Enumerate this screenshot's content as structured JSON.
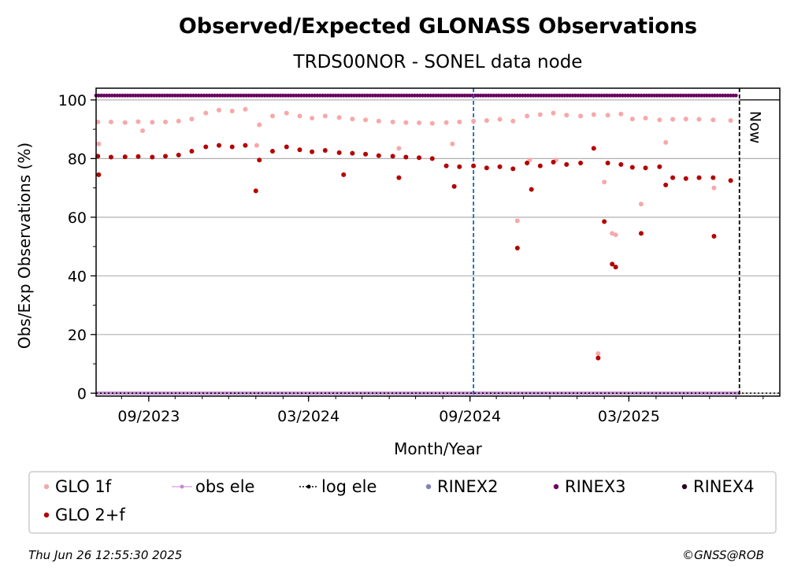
{
  "chart_data": {
    "type": "scatter",
    "title": "Observed/Expected GLONASS Observations",
    "subtitle": "TRDS00NOR - SONEL data node",
    "xlabel": "Month/Year",
    "ylabel": "Obs/Exp Observations (%)",
    "xlim": [
      "2023-07-03",
      "2025-08-20"
    ],
    "ylim": [
      -1,
      104
    ],
    "yticks": [
      0,
      20,
      40,
      60,
      80,
      100
    ],
    "xticks": [
      {
        "date": "2023-09-01",
        "label": "09/2023"
      },
      {
        "date": "2024-03-01",
        "label": "03/2024"
      },
      {
        "date": "2024-09-01",
        "label": "09/2024"
      },
      {
        "date": "2025-03-01",
        "label": "03/2025"
      }
    ],
    "grid": "horizontal",
    "now_label": "Now",
    "now_date": "2025-07-05",
    "rinex_change_date": "2024-09-05",
    "colors": {
      "glo_1f": "#f7a8a8",
      "glo_2f": "#b40000",
      "obs_ele": "#c38ad1",
      "log_ele": "#000000",
      "rinex2": "#8080c0",
      "rinex3": "#6b0060",
      "rinex4": "#2a0020",
      "marker_line": "#1565c0"
    },
    "series": [
      {
        "name": "GLO 1f",
        "points": [
          {
            "x": "2023-07-05",
            "y": 92.5
          },
          {
            "x": "2023-07-20",
            "y": 92.5
          },
          {
            "x": "2023-08-05",
            "y": 92.3
          },
          {
            "x": "2023-08-20",
            "y": 92.6
          },
          {
            "x": "2023-09-05",
            "y": 92.4
          },
          {
            "x": "2023-09-20",
            "y": 92.5
          },
          {
            "x": "2023-10-05",
            "y": 92.8
          },
          {
            "x": "2023-10-20",
            "y": 93.5
          },
          {
            "x": "2023-11-05",
            "y": 95.5
          },
          {
            "x": "2023-11-20",
            "y": 96.5
          },
          {
            "x": "2023-12-05",
            "y": 96.2
          },
          {
            "x": "2023-12-20",
            "y": 96.8
          },
          {
            "x": "2024-01-05",
            "y": 91.5
          },
          {
            "x": "2024-01-20",
            "y": 94.5
          },
          {
            "x": "2024-02-05",
            "y": 95.5
          },
          {
            "x": "2024-02-20",
            "y": 94.5
          },
          {
            "x": "2024-03-05",
            "y": 93.8
          },
          {
            "x": "2024-03-20",
            "y": 94.5
          },
          {
            "x": "2024-04-05",
            "y": 94.0
          },
          {
            "x": "2024-04-20",
            "y": 93.5
          },
          {
            "x": "2024-05-05",
            "y": 93.2
          },
          {
            "x": "2024-05-20",
            "y": 92.8
          },
          {
            "x": "2024-06-05",
            "y": 92.5
          },
          {
            "x": "2024-06-20",
            "y": 92.3
          },
          {
            "x": "2024-07-05",
            "y": 92.2
          },
          {
            "x": "2024-07-20",
            "y": 92.0
          },
          {
            "x": "2024-08-05",
            "y": 92.3
          },
          {
            "x": "2024-08-20",
            "y": 92.5
          },
          {
            "x": "2024-09-05",
            "y": 92.8
          },
          {
            "x": "2024-09-20",
            "y": 93.0
          },
          {
            "x": "2024-10-05",
            "y": 93.4
          },
          {
            "x": "2024-10-20",
            "y": 92.8
          },
          {
            "x": "2024-11-05",
            "y": 94.5
          },
          {
            "x": "2024-11-20",
            "y": 95.0
          },
          {
            "x": "2024-12-05",
            "y": 95.5
          },
          {
            "x": "2024-12-20",
            "y": 94.8
          },
          {
            "x": "2025-01-05",
            "y": 94.5
          },
          {
            "x": "2025-01-20",
            "y": 95.0
          },
          {
            "x": "2025-02-05",
            "y": 94.8
          },
          {
            "x": "2025-02-20",
            "y": 95.2
          },
          {
            "x": "2025-03-05",
            "y": 93.5
          },
          {
            "x": "2025-03-20",
            "y": 93.8
          },
          {
            "x": "2025-04-05",
            "y": 93.2
          },
          {
            "x": "2025-04-20",
            "y": 93.4
          },
          {
            "x": "2025-05-05",
            "y": 93.5
          },
          {
            "x": "2025-05-20",
            "y": 93.4
          },
          {
            "x": "2025-06-05",
            "y": 93.2
          },
          {
            "x": "2025-06-25",
            "y": 93.0
          },
          {
            "x": "2023-07-06",
            "y": 85.0
          },
          {
            "x": "2023-08-25",
            "y": 89.5
          },
          {
            "x": "2024-01-02",
            "y": 84.5
          },
          {
            "x": "2024-06-12",
            "y": 83.5
          },
          {
            "x": "2024-08-12",
            "y": 85.0
          },
          {
            "x": "2024-10-25",
            "y": 58.8
          },
          {
            "x": "2024-11-08",
            "y": 79.5
          },
          {
            "x": "2024-12-08",
            "y": 79.5
          },
          {
            "x": "2025-01-25",
            "y": 13.5
          },
          {
            "x": "2025-02-01",
            "y": 72.0
          },
          {
            "x": "2025-02-10",
            "y": 54.5
          },
          {
            "x": "2025-02-14",
            "y": 54.0
          },
          {
            "x": "2025-03-15",
            "y": 64.5
          },
          {
            "x": "2025-04-12",
            "y": 85.5
          },
          {
            "x": "2025-06-06",
            "y": 70.0
          }
        ]
      },
      {
        "name": "GLO 2+f",
        "points": [
          {
            "x": "2023-07-05",
            "y": 80.8
          },
          {
            "x": "2023-07-20",
            "y": 80.5
          },
          {
            "x": "2023-08-05",
            "y": 80.6
          },
          {
            "x": "2023-08-20",
            "y": 80.7
          },
          {
            "x": "2023-09-05",
            "y": 80.5
          },
          {
            "x": "2023-09-20",
            "y": 80.8
          },
          {
            "x": "2023-10-05",
            "y": 81.2
          },
          {
            "x": "2023-10-20",
            "y": 82.5
          },
          {
            "x": "2023-11-05",
            "y": 84.0
          },
          {
            "x": "2023-11-20",
            "y": 84.5
          },
          {
            "x": "2023-12-05",
            "y": 84.0
          },
          {
            "x": "2023-12-20",
            "y": 84.5
          },
          {
            "x": "2024-01-05",
            "y": 79.5
          },
          {
            "x": "2024-01-20",
            "y": 82.5
          },
          {
            "x": "2024-02-05",
            "y": 84.0
          },
          {
            "x": "2024-02-20",
            "y": 83.0
          },
          {
            "x": "2024-03-05",
            "y": 82.3
          },
          {
            "x": "2024-03-20",
            "y": 82.8
          },
          {
            "x": "2024-04-05",
            "y": 82.0
          },
          {
            "x": "2024-04-20",
            "y": 81.8
          },
          {
            "x": "2024-05-05",
            "y": 81.5
          },
          {
            "x": "2024-05-20",
            "y": 81.0
          },
          {
            "x": "2024-06-05",
            "y": 80.8
          },
          {
            "x": "2024-06-20",
            "y": 80.5
          },
          {
            "x": "2024-07-05",
            "y": 80.3
          },
          {
            "x": "2024-07-20",
            "y": 80.0
          },
          {
            "x": "2024-08-05",
            "y": 77.5
          },
          {
            "x": "2024-08-20",
            "y": 77.2
          },
          {
            "x": "2024-09-05",
            "y": 77.5
          },
          {
            "x": "2024-09-20",
            "y": 76.8
          },
          {
            "x": "2024-10-05",
            "y": 77.2
          },
          {
            "x": "2024-10-20",
            "y": 76.5
          },
          {
            "x": "2024-11-05",
            "y": 78.5
          },
          {
            "x": "2024-11-20",
            "y": 77.5
          },
          {
            "x": "2024-12-05",
            "y": 78.8
          },
          {
            "x": "2024-12-20",
            "y": 78.0
          },
          {
            "x": "2025-01-05",
            "y": 78.5
          },
          {
            "x": "2025-01-20",
            "y": 83.5
          },
          {
            "x": "2025-02-05",
            "y": 78.5
          },
          {
            "x": "2025-02-20",
            "y": 78.0
          },
          {
            "x": "2025-03-05",
            "y": 77.0
          },
          {
            "x": "2025-03-20",
            "y": 76.8
          },
          {
            "x": "2025-04-05",
            "y": 77.2
          },
          {
            "x": "2025-04-20",
            "y": 73.5
          },
          {
            "x": "2025-05-05",
            "y": 73.2
          },
          {
            "x": "2025-05-20",
            "y": 73.5
          },
          {
            "x": "2025-06-05",
            "y": 73.5
          },
          {
            "x": "2025-06-25",
            "y": 72.5
          },
          {
            "x": "2023-07-06",
            "y": 74.5
          },
          {
            "x": "2024-01-01",
            "y": 69.0
          },
          {
            "x": "2024-04-10",
            "y": 74.5
          },
          {
            "x": "2024-06-12",
            "y": 73.5
          },
          {
            "x": "2024-08-14",
            "y": 70.5
          },
          {
            "x": "2024-10-25",
            "y": 49.5
          },
          {
            "x": "2024-11-10",
            "y": 69.5
          },
          {
            "x": "2025-01-25",
            "y": 12.0
          },
          {
            "x": "2025-02-01",
            "y": 58.5
          },
          {
            "x": "2025-02-10",
            "y": 44.0
          },
          {
            "x": "2025-02-14",
            "y": 43.0
          },
          {
            "x": "2025-03-15",
            "y": 54.5
          },
          {
            "x": "2025-04-12",
            "y": 71.0
          },
          {
            "x": "2025-06-06",
            "y": 53.5
          }
        ]
      },
      {
        "name": "obs ele",
        "y": 0,
        "x_range": [
          "2023-07-03",
          "2025-07-05"
        ]
      },
      {
        "name": "log ele",
        "y": 0,
        "x_range": [
          "2023-07-03",
          "2025-08-20"
        ]
      },
      {
        "name": "RINEX2",
        "points": []
      },
      {
        "name": "RINEX3",
        "y": 101.5,
        "x_range": [
          "2023-07-03",
          "2025-07-03"
        ]
      },
      {
        "name": "RINEX4",
        "points": []
      }
    ],
    "legend": {
      "location": "bottom",
      "entries": [
        "GLO 1f",
        "obs ele",
        "log ele",
        "RINEX2",
        "RINEX3",
        "RINEX4",
        "GLO 2+f"
      ]
    }
  },
  "footer": {
    "timestamp": "Thu Jun 26 12:55:30 2025",
    "credit": "©GNSS@ROB"
  }
}
